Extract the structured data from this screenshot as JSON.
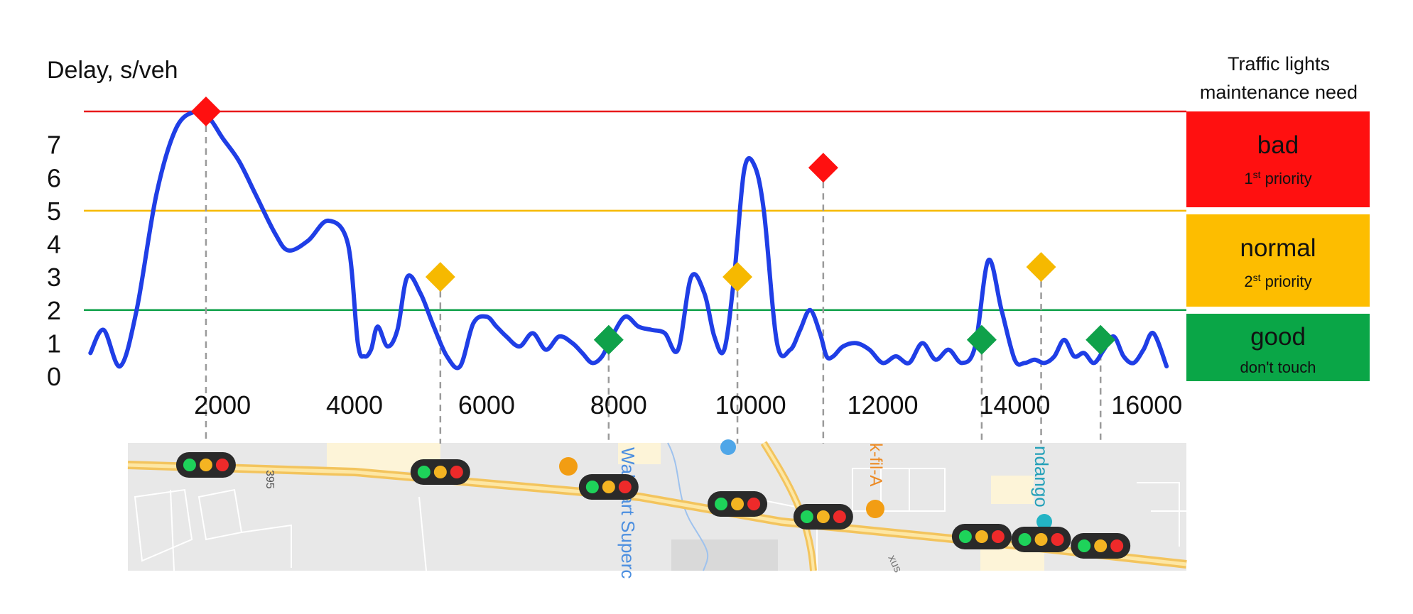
{
  "chart_data": {
    "type": "line",
    "ylabel": "Delay, s/veh",
    "xlabel": "",
    "xlim": [
      -100,
      16600
    ],
    "ylim": [
      0,
      8
    ],
    "x_ticks": [
      2000,
      4000,
      6000,
      8000,
      10000,
      12000,
      14000,
      16000
    ],
    "y_ticks": [
      0,
      1,
      2,
      3,
      4,
      5,
      6,
      7
    ],
    "thresholds": [
      {
        "value": 8,
        "color": "#e8191b"
      },
      {
        "value": 5,
        "color": "#f6b900"
      },
      {
        "value": 2,
        "color": "#0fa14a"
      }
    ],
    "series": [
      {
        "color": "#1f3ee6",
        "x": [
          0,
          200,
          450,
          700,
          1000,
          1300,
          1600,
          1800,
          2000,
          2250,
          2500,
          2800,
          3000,
          3300,
          3600,
          3900,
          4050,
          4150,
          4250,
          4350,
          4500,
          4650,
          4800,
          5000,
          5200,
          5400,
          5600,
          5800,
          6000,
          6150,
          6300,
          6500,
          6700,
          6900,
          7100,
          7300,
          7450,
          7600,
          7750,
          7900,
          8100,
          8300,
          8500,
          8700,
          8900,
          9100,
          9300,
          9450,
          9600,
          9750,
          9900,
          10050,
          10200,
          10400,
          10600,
          10750,
          10900,
          11050,
          11150,
          11250,
          11400,
          11600,
          11800,
          12000,
          12200,
          12400,
          12600,
          12800,
          13000,
          13200,
          13400,
          13600,
          13800,
          14000,
          14150,
          14300,
          14450,
          14600,
          14750,
          14900,
          15050,
          15200,
          15350,
          15500,
          15650,
          15800,
          15950,
          16100,
          16300
        ],
        "y": [
          0.7,
          1.4,
          0.3,
          2.0,
          5.5,
          7.5,
          8.0,
          7.8,
          7.2,
          6.5,
          5.5,
          4.3,
          3.8,
          4.1,
          4.7,
          4.0,
          1.0,
          0.6,
          0.8,
          1.5,
          0.9,
          1.4,
          3.0,
          2.5,
          1.5,
          0.6,
          0.3,
          1.6,
          1.8,
          1.5,
          1.2,
          0.9,
          1.3,
          0.8,
          1.2,
          1.0,
          0.7,
          0.4,
          0.6,
          1.2,
          1.8,
          1.5,
          1.4,
          1.3,
          0.8,
          3.0,
          2.5,
          1.2,
          0.8,
          3.0,
          6.2,
          6.4,
          5.0,
          1.0,
          0.8,
          1.4,
          2.0,
          1.3,
          0.6,
          0.6,
          0.9,
          1.0,
          0.8,
          0.4,
          0.6,
          0.4,
          1.0,
          0.5,
          0.8,
          0.4,
          0.9,
          3.5,
          2.0,
          0.5,
          0.4,
          0.5,
          0.4,
          0.6,
          1.1,
          0.6,
          0.7,
          0.4,
          0.8,
          1.2,
          0.6,
          0.4,
          0.8,
          1.3,
          0.3
        ]
      }
    ],
    "markers": [
      {
        "x": 1750,
        "y": 8.0,
        "color": "#ff1010"
      },
      {
        "x": 5300,
        "y": 3.0,
        "color": "#f6b900"
      },
      {
        "x": 7850,
        "y": 1.1,
        "color": "#0fa14a"
      },
      {
        "x": 9800,
        "y": 3.0,
        "color": "#f6b900"
      },
      {
        "x": 11100,
        "y": 6.3,
        "color": "#ff1010"
      },
      {
        "x": 13500,
        "y": 1.1,
        "color": "#0fa14a"
      },
      {
        "x": 14400,
        "y": 3.3,
        "color": "#f6b900"
      },
      {
        "x": 15300,
        "y": 1.1,
        "color": "#0fa14a"
      }
    ]
  },
  "legend": {
    "title_line1": "Traffic lights",
    "title_line2": "maintenance need",
    "items": [
      {
        "label": "bad",
        "prefix": "1",
        "sup": "st",
        "suffix": " priority",
        "color": "#ff1010"
      },
      {
        "label": "normal",
        "prefix": "2",
        "sup": "st",
        "suffix": " priority",
        "color": "#fdbd00"
      },
      {
        "label": "good",
        "prefix": "",
        "sup": "",
        "suffix": "don't touch",
        "color": "#0aa647"
      }
    ]
  },
  "map": {
    "labels": [
      {
        "text": "395"
      },
      {
        "text": "Walmart Superc"
      },
      {
        "text": "k-fil-A"
      },
      {
        "text": "ndango"
      },
      {
        "text": "xus"
      }
    ]
  }
}
